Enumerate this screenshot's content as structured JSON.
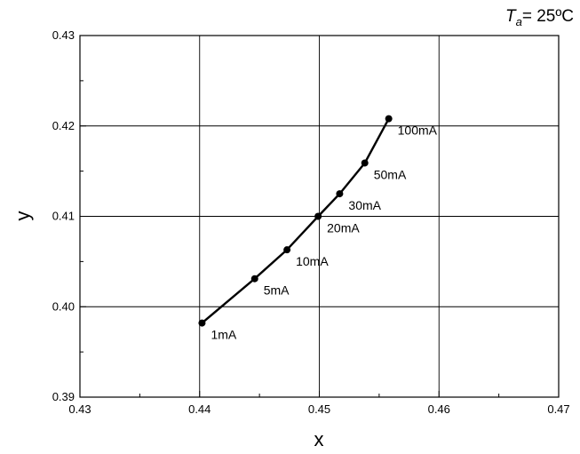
{
  "annotation": {
    "symbol": "T",
    "subscript": "a",
    "rest": "= 25ºC"
  },
  "chart_data": {
    "type": "line",
    "title": "",
    "xlabel": "x",
    "ylabel": "y",
    "xlim": [
      0.43,
      0.47
    ],
    "ylim": [
      0.39,
      0.43
    ],
    "xticks": [
      "0.43",
      "0.44",
      "0.45",
      "0.46",
      "0.47"
    ],
    "yticks": [
      "0.39",
      "0.40",
      "0.41",
      "0.42",
      "0.43"
    ],
    "grid": true,
    "legend": "none",
    "series": [
      {
        "points": [
          {
            "x": 0.4402,
            "y": 0.3982,
            "label": "1mA"
          },
          {
            "x": 0.4446,
            "y": 0.4031,
            "label": "5mA"
          },
          {
            "x": 0.4473,
            "y": 0.4063,
            "label": "10mA"
          },
          {
            "x": 0.4499,
            "y": 0.41,
            "label": "20mA"
          },
          {
            "x": 0.4517,
            "y": 0.4125,
            "label": "30mA"
          },
          {
            "x": 0.4538,
            "y": 0.4159,
            "label": "50mA"
          },
          {
            "x": 0.4558,
            "y": 0.4208,
            "label": "100mA"
          }
        ]
      }
    ]
  }
}
